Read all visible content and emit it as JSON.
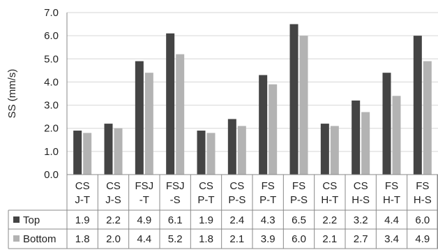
{
  "chart_data": {
    "type": "bar",
    "title": "",
    "ylabel": "SS (mm/s)",
    "xlabel": "",
    "ylim": [
      0,
      7
    ],
    "yticks": [
      "0.0",
      "1.0",
      "2.0",
      "3.0",
      "4.0",
      "5.0",
      "6.0",
      "7.0"
    ],
    "grid": "horizontal",
    "categories": [
      [
        "CS",
        "J-T"
      ],
      [
        "CS",
        "J-S"
      ],
      [
        "FSJ",
        "-T"
      ],
      [
        "FSJ",
        "-S"
      ],
      [
        "CS",
        "P-T"
      ],
      [
        "CS",
        "P-S"
      ],
      [
        "FS",
        "P-T"
      ],
      [
        "FS",
        "P-S"
      ],
      [
        "CS",
        "H-T"
      ],
      [
        "CS",
        "H-S"
      ],
      [
        "FS",
        "H-T"
      ],
      [
        "FS",
        "H-S"
      ]
    ],
    "series": [
      {
        "name": "Top",
        "color": "#444444",
        "values": [
          1.9,
          2.2,
          4.9,
          6.1,
          1.9,
          2.4,
          4.3,
          6.5,
          2.2,
          3.2,
          4.4,
          6.0
        ],
        "labels": [
          "1.9",
          "2.2",
          "4.9",
          "6.1",
          "1.9",
          "2.4",
          "4.3",
          "6.5",
          "2.2",
          "3.2",
          "4.4",
          "6.0"
        ]
      },
      {
        "name": "Bottom",
        "color": "#b3b3b3",
        "values": [
          1.8,
          2.0,
          4.4,
          5.2,
          1.8,
          2.1,
          3.9,
          6.0,
          2.1,
          2.7,
          3.4,
          4.9
        ],
        "labels": [
          "1.8",
          "2.0",
          "4.4",
          "5.2",
          "1.8",
          "2.1",
          "3.9",
          "6.0",
          "2.1",
          "2.7",
          "3.4",
          "4.9"
        ]
      }
    ],
    "legend": "data-table-rows"
  }
}
